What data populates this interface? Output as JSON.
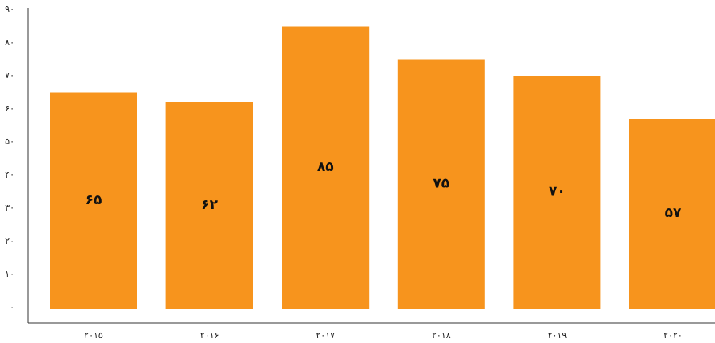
{
  "chart_data": {
    "type": "bar",
    "title": "",
    "xlabel": "",
    "ylabel": "",
    "categories": [
      "۲۰۱۵",
      "۲۰۱۶",
      "۲۰۱۷",
      "۲۰۱۸",
      "۲۰۱۹",
      "۲۰۲۰"
    ],
    "values": [
      65,
      62,
      85,
      75,
      70,
      57
    ],
    "value_labels": [
      "۶۵",
      "۶۲",
      "۸۵",
      "۷۵",
      "۷۰",
      "۵۷"
    ],
    "ylim": [
      0,
      90
    ],
    "yticks": [
      0,
      10,
      20,
      30,
      40,
      50,
      60,
      70,
      80,
      90
    ],
    "ytick_labels": [
      "۰",
      "۱۰",
      "۲۰",
      "۳۰",
      "۴۰",
      "۵۰",
      "۶۰",
      "۷۰",
      "۸۰",
      "۹۰"
    ],
    "grid": false,
    "legend": "none",
    "bar_color": "#F7941D"
  }
}
